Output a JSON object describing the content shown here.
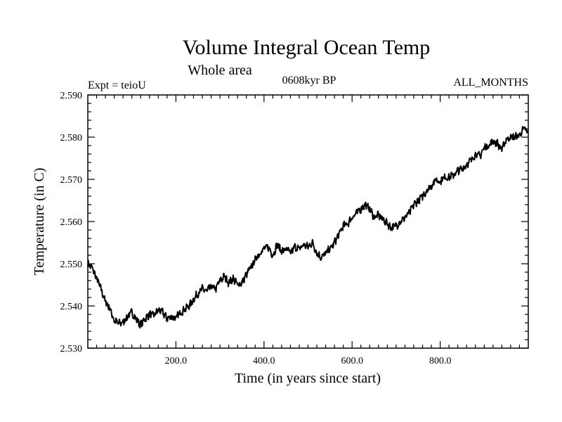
{
  "chart_data": {
    "type": "line",
    "title": "Volume Integral Ocean Temp",
    "subtitle": "Whole area",
    "annotations": {
      "left": "Expt = teioU",
      "center": "0608kyr BP",
      "right": "ALL_MONTHS"
    },
    "xlabel": "Time (in years since start)",
    "ylabel": "Temperature (in C)",
    "xlim": [
      0,
      1000
    ],
    "ylim": [
      2.53,
      2.59
    ],
    "xticks": [
      {
        "value": 200,
        "label": "200.0"
      },
      {
        "value": 400,
        "label": "400.0"
      },
      {
        "value": 600,
        "label": "600.0"
      },
      {
        "value": 800,
        "label": "800.0"
      }
    ],
    "yticks": [
      {
        "value": 2.53,
        "label": "2.530"
      },
      {
        "value": 2.54,
        "label": "2.540"
      },
      {
        "value": 2.55,
        "label": "2.550"
      },
      {
        "value": 2.56,
        "label": "2.560"
      },
      {
        "value": 2.57,
        "label": "2.570"
      },
      {
        "value": 2.58,
        "label": "2.580"
      },
      {
        "value": 2.59,
        "label": "2.590"
      }
    ],
    "grid": false,
    "series": [
      {
        "name": "Volume Integral Ocean Temp",
        "x": [
          0,
          10,
          20,
          30,
          40,
          50,
          60,
          70,
          80,
          90,
          100,
          110,
          120,
          130,
          140,
          150,
          160,
          170,
          180,
          190,
          200,
          210,
          220,
          230,
          240,
          250,
          260,
          270,
          280,
          290,
          300,
          310,
          320,
          330,
          340,
          350,
          360,
          370,
          380,
          390,
          400,
          410,
          420,
          430,
          440,
          450,
          460,
          470,
          480,
          490,
          500,
          510,
          520,
          530,
          540,
          550,
          560,
          570,
          580,
          590,
          600,
          610,
          620,
          630,
          640,
          650,
          660,
          670,
          680,
          690,
          700,
          710,
          720,
          730,
          740,
          750,
          760,
          770,
          780,
          790,
          800,
          810,
          820,
          830,
          840,
          850,
          860,
          870,
          880,
          890,
          900,
          910,
          920,
          930,
          940,
          950,
          960,
          970,
          980,
          990,
          1000
        ],
        "values": [
          2.55,
          2.549,
          2.5465,
          2.544,
          2.541,
          2.5395,
          2.5365,
          2.5358,
          2.5362,
          2.5375,
          2.5385,
          2.5368,
          2.5355,
          2.537,
          2.538,
          2.5378,
          2.539,
          2.5385,
          2.537,
          2.5375,
          2.537,
          2.5385,
          2.5392,
          2.54,
          2.5415,
          2.543,
          2.544,
          2.5435,
          2.5445,
          2.544,
          2.546,
          2.547,
          2.5455,
          2.5465,
          2.545,
          2.5455,
          2.5475,
          2.549,
          2.551,
          2.5525,
          2.5535,
          2.554,
          2.552,
          2.5545,
          2.553,
          2.5535,
          2.5525,
          2.554,
          2.5535,
          2.5545,
          2.554,
          2.555,
          2.5525,
          2.5515,
          2.5525,
          2.5535,
          2.555,
          2.557,
          2.559,
          2.5595,
          2.561,
          2.562,
          2.563,
          2.564,
          2.563,
          2.561,
          2.5615,
          2.5605,
          2.5595,
          2.5585,
          2.559,
          2.56,
          2.561,
          2.562,
          2.564,
          2.565,
          2.566,
          2.5675,
          2.5685,
          2.57,
          2.5695,
          2.5705,
          2.5705,
          2.571,
          2.572,
          2.5725,
          2.5735,
          2.5745,
          2.576,
          2.5755,
          2.5775,
          2.578,
          2.579,
          2.5785,
          2.577,
          2.5795,
          2.58,
          2.58,
          2.5805,
          2.582,
          2.581
        ]
      }
    ]
  }
}
